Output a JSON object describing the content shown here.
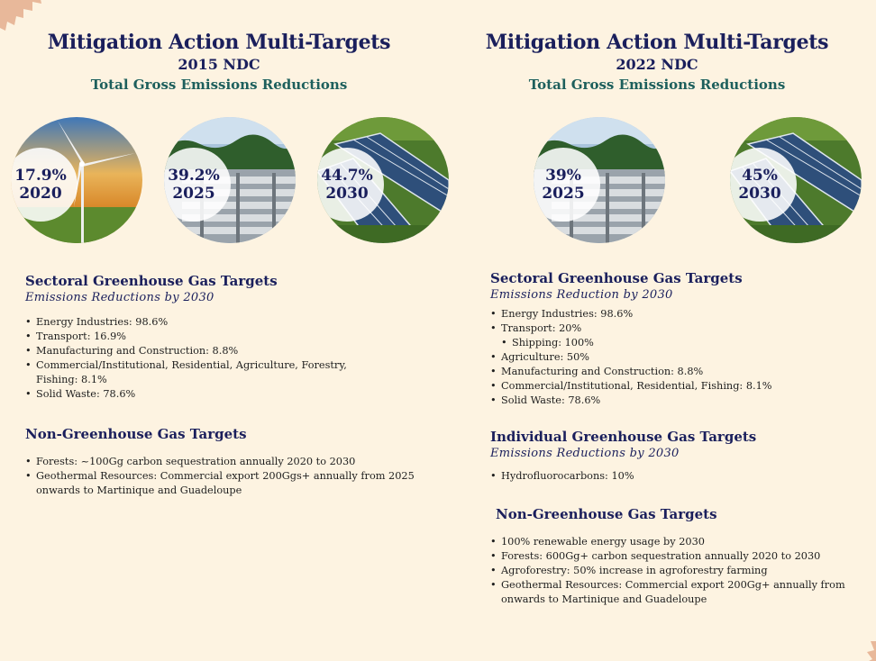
{
  "left": {
    "title": "Mitigation Action Multi-Targets",
    "ndc": "2015 NDC",
    "subtitle": "Total Gross Emissions Reductions",
    "targets": [
      {
        "pct": "17.9%",
        "year": "2020",
        "image": "wind-turbine-icon"
      },
      {
        "pct": "39.2%",
        "year": "2025",
        "image": "geothermal-plant-icon"
      },
      {
        "pct": "44.7%",
        "year": "2030",
        "image": "solar-panels-icon"
      }
    ],
    "sectoral": {
      "heading": "Sectoral Greenhouse Gas Targets",
      "sub": "Emissions Reductions by 2030",
      "items": [
        "Energy Industries: 98.6%",
        "Transport: 16.9%",
        "Manufacturing and Construction: 8.8%",
        "Commercial/Institutional, Residential, Agriculture, Forestry,",
        "Fishing: 8.1%",
        "Solid Waste: 78.6%"
      ]
    },
    "nonghg": {
      "heading": "Non-Greenhouse Gas Targets",
      "items": [
        "Forests: ~100Gg carbon sequestration annually 2020 to 2030",
        "Geothermal Resources: Commercial export 200Ggs+ annually from 2025",
        "onwards to Martinique and Guadeloupe"
      ]
    }
  },
  "right": {
    "title": "Mitigation Action Multi-Targets",
    "ndc": "2022 NDC",
    "subtitle": "Total Gross Emissions Reductions",
    "targets": [
      {
        "pct": "39%",
        "year": "2025",
        "image": "geothermal-plant-icon"
      },
      {
        "pct": "45%",
        "year": "2030",
        "image": "solar-panels-icon"
      }
    ],
    "sectoral": {
      "heading": "Sectoral Greenhouse Gas Targets",
      "sub": "Emissions Reduction by 2030",
      "items": [
        "Energy Industries: 98.6%",
        "Transport: 20%",
        "Shipping: 100%",
        "Agriculture: 50%",
        "Manufacturing and Construction: 8.8%",
        "Commercial/Institutional, Residential, Fishing: 8.1%",
        "Solid Waste: 78.6%"
      ]
    },
    "individual": {
      "heading": "Individual Greenhouse Gas Targets",
      "sub": "Emissions Reductions by 2030",
      "items": [
        "Hydrofluorocarbons: 10%"
      ]
    },
    "nonghg": {
      "heading": "Non-Greenhouse Gas Targets",
      "items": [
        "100% renewable energy usage by 2030",
        "Forests: 600Gg+ carbon sequestration annually 2020 to 2030",
        "Agroforestry: 50% increase in agroforestry farming",
        "Geothermal Resources: Commercial export 200Gg+ annually from",
        "onwards to Martinique and Guadeloupe"
      ]
    }
  },
  "colors": {
    "background": "#fdf3e1",
    "title": "#1a1f5c",
    "subtitle": "#1d5f5c",
    "corner": "#e8b89a"
  }
}
